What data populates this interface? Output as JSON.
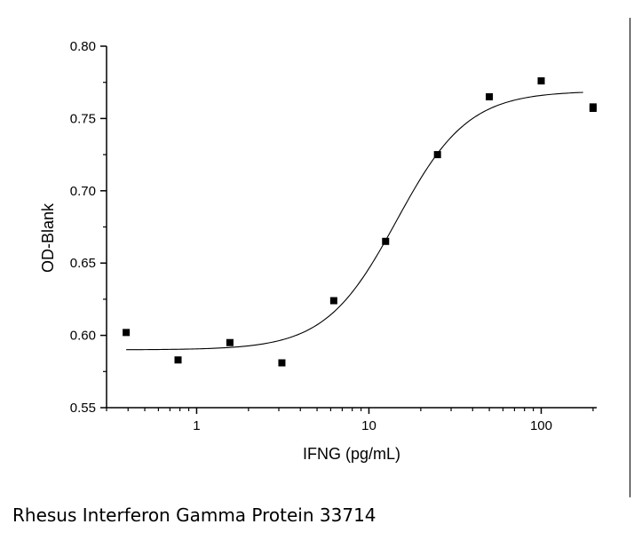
{
  "caption": "Rhesus Interferon Gamma Protein 33714",
  "chart_data": {
    "type": "scatter",
    "title": "",
    "xlabel": "IFNG (pg/mL)",
    "ylabel": "OD-Blank",
    "xscale": "log",
    "xlim": [
      0.3,
      210
    ],
    "ylim": [
      0.55,
      0.8
    ],
    "xticks": [
      {
        "value": 1,
        "label": "1"
      },
      {
        "value": 10,
        "label": "10"
      },
      {
        "value": 100,
        "label": "100"
      }
    ],
    "yticks": [
      {
        "value": 0.55,
        "label": "0.55"
      },
      {
        "value": 0.6,
        "label": "0.60"
      },
      {
        "value": 0.65,
        "label": "0.65"
      },
      {
        "value": 0.7,
        "label": "0.70"
      },
      {
        "value": 0.75,
        "label": "0.75"
      },
      {
        "value": 0.8,
        "label": "0.80"
      }
    ],
    "grid": false,
    "series": [
      {
        "type": "scatter",
        "marker": "square",
        "color": "#000000",
        "points": [
          {
            "x": 0.39,
            "y": 0.602
          },
          {
            "x": 0.78,
            "y": 0.583
          },
          {
            "x": 1.56,
            "y": 0.595
          },
          {
            "x": 3.125,
            "y": 0.581
          },
          {
            "x": 6.25,
            "y": 0.624
          },
          {
            "x": 12.5,
            "y": 0.665
          },
          {
            "x": 25,
            "y": 0.725
          },
          {
            "x": 50,
            "y": 0.765
          },
          {
            "x": 100,
            "y": 0.776
          },
          {
            "x": 200,
            "y": 0.758
          },
          {
            "x": 200,
            "y": 0.757
          }
        ]
      },
      {
        "type": "line",
        "fit": "four-parameter logistic",
        "color": "#000000",
        "x_range": [
          0.39,
          175
        ],
        "params": {
          "bottom": 0.59,
          "top": 0.769,
          "ec50": 14.5,
          "hill": 2.1
        }
      }
    ]
  }
}
